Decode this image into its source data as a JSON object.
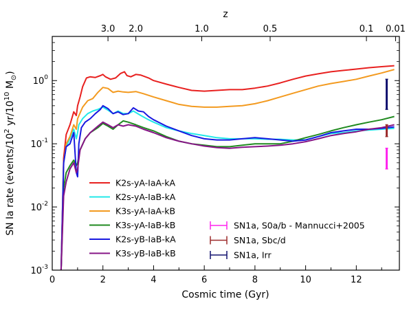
{
  "chart_data": {
    "type": "line",
    "xlabel": "Cosmic time (Gyr)",
    "ylabel_main": "SN Ia rate (events/10",
    "ylabel_sup1": "2",
    "ylabel_mid": " yr/10",
    "ylabel_sup2": "10",
    "ylabel_end": " M",
    "ylabel_sym": "⊙",
    "ylabel_close": ")",
    "top_axis_label": "z",
    "xlim": [
      0,
      13.7
    ],
    "ylim": [
      0.001,
      5
    ],
    "yscale": "log",
    "x_ticks": [
      0,
      2,
      4,
      6,
      8,
      10,
      12
    ],
    "x_tick_labels": [
      "0",
      "2",
      "4",
      "6",
      "8",
      "10",
      "12"
    ],
    "y_ticks": [
      0.001,
      0.01,
      0.1,
      1
    ],
    "y_tick_base": "10",
    "y_tick_exps": [
      "-3",
      "-2",
      "-1",
      "0"
    ],
    "top_ticks_t": [
      2.2,
      3.3,
      5.9,
      8.6,
      12.4,
      13.55
    ],
    "top_tick_labels": [
      "3.0",
      "2.0",
      "1.0",
      "0.5",
      "0.1",
      "0.01"
    ],
    "legend_position": "lower-left",
    "series": [
      {
        "name": "K2s-yA-IaA-kA",
        "color": "#e8201f",
        "points": [
          [
            0.35,
            0.001
          ],
          [
            0.45,
            0.06
          ],
          [
            0.55,
            0.14
          ],
          [
            0.7,
            0.2
          ],
          [
            0.85,
            0.32
          ],
          [
            0.95,
            0.28
          ],
          [
            1.0,
            0.4
          ],
          [
            1.1,
            0.55
          ],
          [
            1.2,
            0.8
          ],
          [
            1.35,
            1.1
          ],
          [
            1.5,
            1.15
          ],
          [
            1.7,
            1.12
          ],
          [
            1.9,
            1.2
          ],
          [
            2.0,
            1.25
          ],
          [
            2.1,
            1.15
          ],
          [
            2.3,
            1.05
          ],
          [
            2.5,
            1.1
          ],
          [
            2.7,
            1.3
          ],
          [
            2.85,
            1.38
          ],
          [
            2.95,
            1.2
          ],
          [
            3.1,
            1.15
          ],
          [
            3.3,
            1.25
          ],
          [
            3.5,
            1.22
          ],
          [
            3.8,
            1.1
          ],
          [
            4.0,
            1.0
          ],
          [
            4.5,
            0.88
          ],
          [
            5.0,
            0.78
          ],
          [
            5.5,
            0.7
          ],
          [
            6.0,
            0.68
          ],
          [
            6.5,
            0.7
          ],
          [
            7.0,
            0.72
          ],
          [
            7.5,
            0.72
          ],
          [
            8.0,
            0.76
          ],
          [
            8.5,
            0.82
          ],
          [
            9.0,
            0.92
          ],
          [
            9.5,
            1.05
          ],
          [
            10.0,
            1.18
          ],
          [
            10.5,
            1.28
          ],
          [
            11.0,
            1.38
          ],
          [
            11.5,
            1.45
          ],
          [
            12.0,
            1.52
          ],
          [
            12.5,
            1.6
          ],
          [
            13.0,
            1.66
          ],
          [
            13.5,
            1.72
          ]
        ]
      },
      {
        "name": "K2s-yA-IaB-kA",
        "color": "#22e8e8",
        "points": [
          [
            0.35,
            0.001
          ],
          [
            0.45,
            0.05
          ],
          [
            0.55,
            0.09
          ],
          [
            0.7,
            0.12
          ],
          [
            0.85,
            0.17
          ],
          [
            0.95,
            0.12
          ],
          [
            1.0,
            0.15
          ],
          [
            1.05,
            0.2
          ],
          [
            1.2,
            0.25
          ],
          [
            1.4,
            0.3
          ],
          [
            1.6,
            0.33
          ],
          [
            1.8,
            0.35
          ],
          [
            2.0,
            0.38
          ],
          [
            2.2,
            0.34
          ],
          [
            2.4,
            0.3
          ],
          [
            2.6,
            0.33
          ],
          [
            2.8,
            0.3
          ],
          [
            3.0,
            0.3
          ],
          [
            3.2,
            0.33
          ],
          [
            3.5,
            0.28
          ],
          [
            3.8,
            0.24
          ],
          [
            4.0,
            0.22
          ],
          [
            4.5,
            0.18
          ],
          [
            5.0,
            0.16
          ],
          [
            5.5,
            0.145
          ],
          [
            6.0,
            0.135
          ],
          [
            6.5,
            0.125
          ],
          [
            7.0,
            0.12
          ],
          [
            7.5,
            0.12
          ],
          [
            8.0,
            0.12
          ],
          [
            8.5,
            0.118
          ],
          [
            9.0,
            0.118
          ],
          [
            9.5,
            0.115
          ],
          [
            10.0,
            0.115
          ],
          [
            10.5,
            0.13
          ],
          [
            11.0,
            0.145
          ],
          [
            11.5,
            0.15
          ],
          [
            12.0,
            0.16
          ],
          [
            12.5,
            0.165
          ],
          [
            13.0,
            0.17
          ],
          [
            13.5,
            0.175
          ]
        ]
      },
      {
        "name": "K3s-yA-IaA-kB",
        "color": "#f39a1f",
        "points": [
          [
            0.35,
            0.001
          ],
          [
            0.45,
            0.05
          ],
          [
            0.55,
            0.1
          ],
          [
            0.7,
            0.13
          ],
          [
            0.85,
            0.2
          ],
          [
            0.95,
            0.17
          ],
          [
            1.0,
            0.25
          ],
          [
            1.2,
            0.38
          ],
          [
            1.4,
            0.48
          ],
          [
            1.6,
            0.52
          ],
          [
            1.8,
            0.65
          ],
          [
            2.0,
            0.78
          ],
          [
            2.2,
            0.75
          ],
          [
            2.4,
            0.65
          ],
          [
            2.6,
            0.68
          ],
          [
            2.8,
            0.66
          ],
          [
            3.0,
            0.65
          ],
          [
            3.3,
            0.67
          ],
          [
            3.6,
            0.62
          ],
          [
            4.0,
            0.55
          ],
          [
            4.5,
            0.48
          ],
          [
            5.0,
            0.42
          ],
          [
            5.5,
            0.39
          ],
          [
            6.0,
            0.38
          ],
          [
            6.5,
            0.38
          ],
          [
            7.0,
            0.39
          ],
          [
            7.5,
            0.4
          ],
          [
            8.0,
            0.43
          ],
          [
            8.5,
            0.48
          ],
          [
            9.0,
            0.55
          ],
          [
            9.5,
            0.63
          ],
          [
            10.0,
            0.72
          ],
          [
            10.5,
            0.82
          ],
          [
            11.0,
            0.9
          ],
          [
            11.5,
            0.97
          ],
          [
            12.0,
            1.05
          ],
          [
            12.5,
            1.18
          ],
          [
            13.0,
            1.32
          ],
          [
            13.5,
            1.5
          ]
        ]
      },
      {
        "name": "K3s-yA-IaB-kB",
        "color": "#1f8a1f",
        "points": [
          [
            0.35,
            0.001
          ],
          [
            0.45,
            0.02
          ],
          [
            0.55,
            0.035
          ],
          [
            0.7,
            0.045
          ],
          [
            0.85,
            0.055
          ],
          [
            0.95,
            0.045
          ],
          [
            1.0,
            0.05
          ],
          [
            1.1,
            0.08
          ],
          [
            1.3,
            0.12
          ],
          [
            1.5,
            0.15
          ],
          [
            1.8,
            0.18
          ],
          [
            2.0,
            0.21
          ],
          [
            2.2,
            0.19
          ],
          [
            2.4,
            0.17
          ],
          [
            2.6,
            0.2
          ],
          [
            2.8,
            0.23
          ],
          [
            3.0,
            0.22
          ],
          [
            3.3,
            0.2
          ],
          [
            3.6,
            0.18
          ],
          [
            4.0,
            0.16
          ],
          [
            4.5,
            0.13
          ],
          [
            5.0,
            0.11
          ],
          [
            5.5,
            0.1
          ],
          [
            6.0,
            0.095
          ],
          [
            6.5,
            0.09
          ],
          [
            7.0,
            0.09
          ],
          [
            7.5,
            0.095
          ],
          [
            8.0,
            0.1
          ],
          [
            8.5,
            0.1
          ],
          [
            9.0,
            0.1
          ],
          [
            9.5,
            0.11
          ],
          [
            10.0,
            0.125
          ],
          [
            10.5,
            0.14
          ],
          [
            11.0,
            0.16
          ],
          [
            11.5,
            0.18
          ],
          [
            12.0,
            0.2
          ],
          [
            12.5,
            0.22
          ],
          [
            13.0,
            0.24
          ],
          [
            13.5,
            0.27
          ]
        ]
      },
      {
        "name": "K2s-yB-IaB-kA",
        "color": "#1818e0",
        "points": [
          [
            0.35,
            0.001
          ],
          [
            0.45,
            0.05
          ],
          [
            0.55,
            0.09
          ],
          [
            0.7,
            0.1
          ],
          [
            0.85,
            0.15
          ],
          [
            0.95,
            0.035
          ],
          [
            1.0,
            0.03
          ],
          [
            1.05,
            0.1
          ],
          [
            1.15,
            0.18
          ],
          [
            1.3,
            0.22
          ],
          [
            1.5,
            0.25
          ],
          [
            1.7,
            0.3
          ],
          [
            1.9,
            0.35
          ],
          [
            2.0,
            0.4
          ],
          [
            2.2,
            0.36
          ],
          [
            2.4,
            0.3
          ],
          [
            2.6,
            0.32
          ],
          [
            2.8,
            0.29
          ],
          [
            3.0,
            0.3
          ],
          [
            3.2,
            0.37
          ],
          [
            3.4,
            0.33
          ],
          [
            3.6,
            0.32
          ],
          [
            3.8,
            0.27
          ],
          [
            4.0,
            0.24
          ],
          [
            4.5,
            0.19
          ],
          [
            5.0,
            0.16
          ],
          [
            5.5,
            0.135
          ],
          [
            6.0,
            0.12
          ],
          [
            6.5,
            0.115
          ],
          [
            7.0,
            0.115
          ],
          [
            7.5,
            0.12
          ],
          [
            8.0,
            0.125
          ],
          [
            8.5,
            0.12
          ],
          [
            9.0,
            0.115
          ],
          [
            9.5,
            0.11
          ],
          [
            10.0,
            0.115
          ],
          [
            10.5,
            0.13
          ],
          [
            11.0,
            0.15
          ],
          [
            11.5,
            0.16
          ],
          [
            12.0,
            0.17
          ],
          [
            12.5,
            0.17
          ],
          [
            13.0,
            0.175
          ],
          [
            13.5,
            0.185
          ]
        ]
      },
      {
        "name": "K3s-yB-IaB-kB",
        "color": "#861486",
        "points": [
          [
            0.35,
            0.001
          ],
          [
            0.45,
            0.015
          ],
          [
            0.55,
            0.025
          ],
          [
            0.7,
            0.04
          ],
          [
            0.85,
            0.05
          ],
          [
            0.95,
            0.035
          ],
          [
            1.0,
            0.04
          ],
          [
            1.1,
            0.08
          ],
          [
            1.3,
            0.12
          ],
          [
            1.5,
            0.15
          ],
          [
            1.8,
            0.19
          ],
          [
            2.0,
            0.22
          ],
          [
            2.2,
            0.2
          ],
          [
            2.4,
            0.18
          ],
          [
            2.6,
            0.2
          ],
          [
            2.8,
            0.19
          ],
          [
            3.0,
            0.2
          ],
          [
            3.3,
            0.19
          ],
          [
            3.6,
            0.17
          ],
          [
            4.0,
            0.15
          ],
          [
            4.5,
            0.125
          ],
          [
            5.0,
            0.11
          ],
          [
            5.5,
            0.1
          ],
          [
            6.0,
            0.092
          ],
          [
            6.5,
            0.087
          ],
          [
            7.0,
            0.085
          ],
          [
            7.5,
            0.088
          ],
          [
            8.0,
            0.09
          ],
          [
            8.5,
            0.092
          ],
          [
            9.0,
            0.095
          ],
          [
            9.5,
            0.1
          ],
          [
            10.0,
            0.108
          ],
          [
            10.5,
            0.12
          ],
          [
            11.0,
            0.135
          ],
          [
            11.5,
            0.145
          ],
          [
            12.0,
            0.155
          ],
          [
            12.5,
            0.17
          ],
          [
            13.0,
            0.18
          ],
          [
            13.5,
            0.2
          ]
        ]
      }
    ],
    "observations": [
      {
        "name": "SN1a, S0a/b - Mannucci+2005",
        "color": "#ff22ee",
        "x": 13.2,
        "y_low": 0.04,
        "y_high": 0.085
      },
      {
        "name": "SN1a, Sbc/d",
        "color": "#9c2a2a",
        "x": 13.2,
        "y_low": 0.13,
        "y_high": 0.2
      },
      {
        "name": "SN1a, Irr",
        "color": "#10106e",
        "x": 13.2,
        "y_low": 0.35,
        "y_high": 1.05
      }
    ]
  }
}
